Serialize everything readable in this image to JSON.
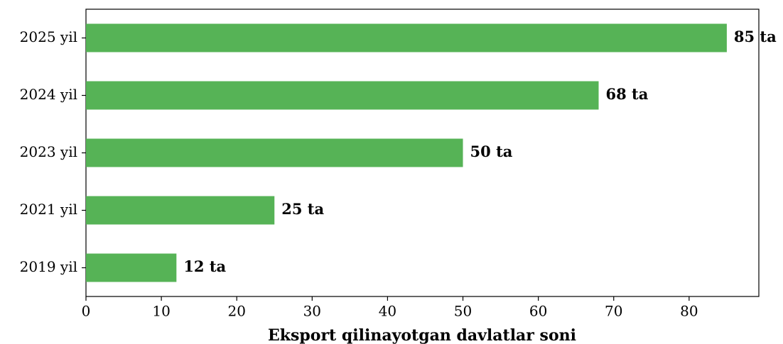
{
  "chart_data": {
    "type": "barh",
    "xlabel": "Eksport qilinayotgan davlatlar soni",
    "categories": [
      "2025 yil",
      "2024 yil",
      "2023 yil",
      "2021 yil",
      "2019 yil"
    ],
    "values": [
      85,
      68,
      50,
      25,
      12
    ],
    "value_labels": [
      "85 ta",
      "68 ta",
      "50 ta",
      "25 ta",
      "12 ta"
    ],
    "color": "#56b356",
    "xlim": [
      0,
      89.25
    ],
    "xticks": [
      0,
      10,
      20,
      30,
      40,
      50,
      60,
      70,
      80
    ]
  }
}
